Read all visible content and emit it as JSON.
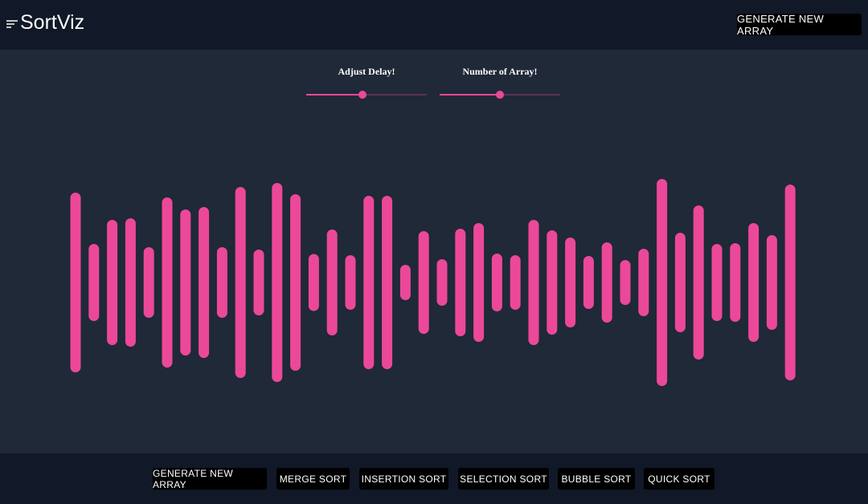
{
  "header": {
    "title": "SortViz",
    "button": "GENERATE NEW ARRAY"
  },
  "controls": {
    "delay_label": "Adjust Delay!",
    "size_label": "Number of Array!"
  },
  "array": [
    224,
    96,
    156,
    160,
    88,
    212,
    182,
    188,
    88,
    238,
    82,
    248,
    220,
    71,
    132,
    68,
    216,
    216,
    44,
    128,
    58,
    134,
    148,
    72,
    68,
    156,
    130,
    112,
    66,
    100,
    56,
    84,
    258,
    124,
    192,
    96,
    98,
    148,
    118,
    244
  ],
  "footer": {
    "buttons": [
      "GENERATE NEW ARRAY",
      "MERGE SORT",
      "INSERTION SORT",
      "SELECTION SORT",
      "BUBBLE SORT",
      "QUICK SORT"
    ]
  }
}
